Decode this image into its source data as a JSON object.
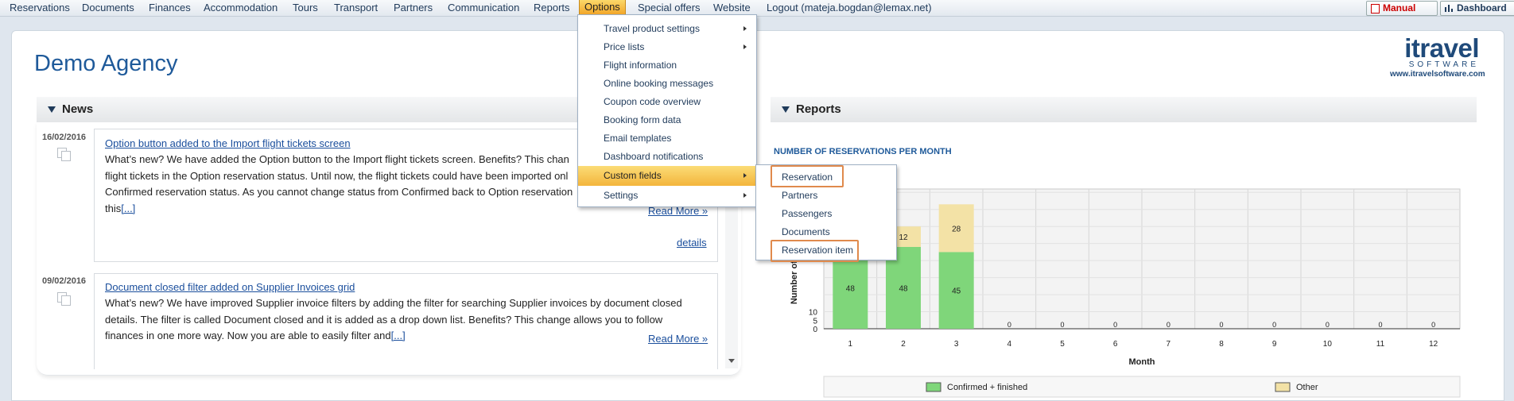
{
  "topmenu": {
    "items": [
      "Reservations",
      "Documents",
      "Finances",
      "Accommodation",
      "Tours",
      "Transport",
      "Partners",
      "Communication",
      "Reports",
      "Options",
      "Special offers",
      "Website",
      "Logout (mateja.bogdan@lemax.net)"
    ],
    "manual_label": "Manual",
    "dashboard_label": "Dashboard"
  },
  "page": {
    "title": "Demo Agency",
    "logo_main": "itravel",
    "logo_sub": "SOFTWARE",
    "logo_url": "www.itravelsoftware.com"
  },
  "news": {
    "header": "News",
    "items": [
      {
        "date": "16/02/2016",
        "title": "Option button added to the Import flight tickets screen",
        "lines": [
          "What’s new? We have added the Option button to the Import flight tickets screen. Benefits? This chan",
          "flight tickets in the Option reservation status. Until now, the flight tickets could have been imported onl",
          "Confirmed reservation status. As you cannot change status from Confirmed back to Option reservation",
          "this"
        ],
        "more": "[...]",
        "read_more": "Read More »",
        "details": "details"
      },
      {
        "date": "09/02/2016",
        "title": "Document closed filter added on Supplier Invoices grid",
        "lines": [
          "What’s new? We have improved Supplier invoice filters by adding the filter for searching Supplier invoices by document closed",
          "details. The filter is called Document closed and it is added as a drop down list. Benefits? This change allows you to follow",
          "finances in one more way. Now you are able to easily filter and"
        ],
        "more": "[...]",
        "read_more": "Read More »"
      }
    ]
  },
  "options_menu": {
    "items": [
      {
        "label": "Travel product settings",
        "submenu": true
      },
      {
        "label": "Price lists",
        "submenu": true
      },
      {
        "label": "Flight information",
        "submenu": false
      },
      {
        "label": "Online booking messages",
        "submenu": false
      },
      {
        "label": "Coupon code overview",
        "submenu": false
      },
      {
        "label": "Booking form data",
        "submenu": false
      },
      {
        "label": "Email templates",
        "submenu": false
      },
      {
        "label": "Dashboard notifications",
        "submenu": false
      },
      {
        "label": "Custom fields",
        "submenu": true,
        "highlighted": true
      },
      {
        "label": "Settings",
        "submenu": true
      }
    ],
    "custom_fields_submenu": [
      "Reservation",
      "Partners",
      "Passengers",
      "Documents",
      "Reservation item"
    ]
  },
  "reports": {
    "header": "Reports",
    "chart_title": "NUMBER OF RESERVATIONS PER MONTH"
  },
  "chart_data": {
    "type": "bar",
    "stacked": true,
    "title": "NUMBER OF RESERVATIONS PER MONTH",
    "xlabel": "Month",
    "ylabel": "Number of r",
    "categories": [
      "1",
      "2",
      "3",
      "4",
      "5",
      "6",
      "7",
      "8",
      "9",
      "10",
      "11",
      "12"
    ],
    "series": [
      {
        "name": "Confirmed + finished",
        "values": [
          48,
          48,
          45,
          0,
          0,
          0,
          0,
          0,
          0,
          0,
          0,
          0
        ],
        "color": "#7fd67a"
      },
      {
        "name": "Other",
        "values": [
          null,
          12,
          28,
          null,
          null,
          null,
          null,
          null,
          null,
          null,
          null,
          null
        ],
        "color": "#f3e2a6"
      }
    ],
    "yticks": [
      "0",
      "5",
      "10"
    ],
    "zero_labels": [
      "0",
      "0",
      "0",
      "0",
      "0",
      "0",
      "0",
      "0",
      "0"
    ],
    "ylim": [
      0,
      82
    ],
    "grid": true,
    "legend_position": "bottom"
  }
}
